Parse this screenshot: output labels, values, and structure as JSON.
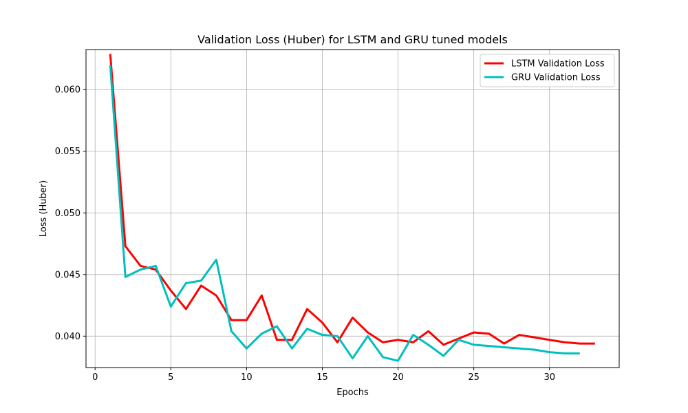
{
  "chart_data": {
    "type": "line",
    "title": "Validation Loss (Huber) for LSTM and GRU tuned models",
    "xlabel": "Epochs",
    "ylabel": "Loss (Huber)",
    "xlim": [
      -0.6,
      34.6
    ],
    "ylim": [
      0.03745,
      0.06325
    ],
    "xticks": [
      0,
      5,
      10,
      15,
      20,
      25,
      30
    ],
    "yticks": [
      0.04,
      0.045,
      0.05,
      0.055,
      0.06
    ],
    "yticks_labels": [
      "0.040",
      "0.045",
      "0.050",
      "0.055",
      "0.060"
    ],
    "grid": true,
    "legend": "top-right",
    "series": [
      {
        "name": "LSTM Validation Loss",
        "color": "#ff0000",
        "x": [
          1,
          2,
          3,
          4,
          5,
          6,
          7,
          8,
          9,
          10,
          11,
          12,
          13,
          14,
          15,
          16,
          17,
          18,
          19,
          20,
          21,
          22,
          23,
          24,
          25,
          26,
          27,
          28,
          29,
          30,
          31,
          32,
          33
        ],
        "values": [
          0.0629,
          0.0473,
          0.0457,
          0.0454,
          0.0437,
          0.0422,
          0.0441,
          0.0433,
          0.0413,
          0.0413,
          0.0433,
          0.0397,
          0.0397,
          0.0422,
          0.0411,
          0.0395,
          0.0415,
          0.0403,
          0.0395,
          0.0397,
          0.0395,
          0.0404,
          0.0393,
          0.0398,
          0.0403,
          0.0402,
          0.0394,
          0.0401,
          0.0399,
          0.0397,
          0.0395,
          0.0394,
          0.0394
        ]
      },
      {
        "name": "GRU Validation Loss",
        "color": "#00bfbf",
        "x": [
          1,
          2,
          3,
          4,
          5,
          6,
          7,
          8,
          9,
          10,
          11,
          12,
          13,
          14,
          15,
          16,
          17,
          18,
          19,
          20,
          21,
          22,
          23,
          24,
          25,
          26,
          27,
          28,
          29,
          30,
          31,
          32
        ],
        "values": [
          0.062,
          0.0448,
          0.0454,
          0.0457,
          0.0424,
          0.0443,
          0.0445,
          0.0462,
          0.0404,
          0.039,
          0.0402,
          0.0408,
          0.039,
          0.0406,
          0.0401,
          0.04,
          0.0382,
          0.04,
          0.0383,
          0.038,
          0.0401,
          0.0393,
          0.0384,
          0.0397,
          0.0393,
          0.0392,
          0.0391,
          0.039,
          0.0389,
          0.0387,
          0.0386,
          0.0386
        ]
      }
    ]
  }
}
